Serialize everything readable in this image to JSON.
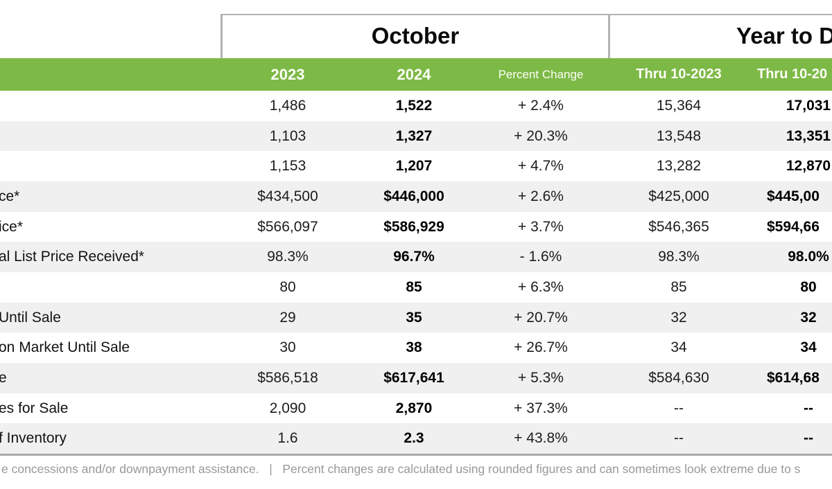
{
  "sections": {
    "october": {
      "title": "October",
      "columns": [
        "2023",
        "2024",
        "Percent Change"
      ]
    },
    "year_to_date": {
      "title": "Year to D",
      "columns": [
        "Thru 10-2023",
        "Thru 10-20"
      ]
    }
  },
  "table": {
    "rows": [
      {
        "label": "",
        "oct_2023": "1,486",
        "oct_2024": "1,522",
        "pct_change": "+ 2.4%",
        "ytd_2023": "15,364",
        "ytd_2024": "17,031"
      },
      {
        "label": "",
        "oct_2023": "1,103",
        "oct_2024": "1,327",
        "pct_change": "+ 20.3%",
        "ytd_2023": "13,548",
        "ytd_2024": "13,351"
      },
      {
        "label": "",
        "oct_2023": "1,153",
        "oct_2024": "1,207",
        "pct_change": "+ 4.7%",
        "ytd_2023": "13,282",
        "ytd_2024": "12,870"
      },
      {
        "label": "ce*",
        "oct_2023": "$434,500",
        "oct_2024": "$446,000",
        "pct_change": "+ 2.6%",
        "ytd_2023": "$425,000",
        "ytd_2024": "$445,00"
      },
      {
        "label": "ice*",
        "oct_2023": "$566,097",
        "oct_2024": "$586,929",
        "pct_change": "+ 3.7%",
        "ytd_2023": "$546,365",
        "ytd_2024": "$594,66"
      },
      {
        "label": "al List Price Received*",
        "oct_2023": "98.3%",
        "oct_2024": "96.7%",
        "pct_change": "- 1.6%",
        "ytd_2023": "98.3%",
        "ytd_2024": "98.0%"
      },
      {
        "label": "",
        "oct_2023": "80",
        "oct_2024": "85",
        "pct_change": "+ 6.3%",
        "ytd_2023": "85",
        "ytd_2024": "80"
      },
      {
        "label": "Until Sale",
        "oct_2023": "29",
        "oct_2024": "35",
        "pct_change": "+ 20.7%",
        "ytd_2023": "32",
        "ytd_2024": "32"
      },
      {
        "label": "on Market Until Sale",
        "oct_2023": "30",
        "oct_2024": "38",
        "pct_change": "+ 26.7%",
        "ytd_2023": "34",
        "ytd_2024": "34"
      },
      {
        "label": "e",
        "oct_2023": "$586,518",
        "oct_2024": "$617,641",
        "pct_change": "+ 5.3%",
        "ytd_2023": "$584,630",
        "ytd_2024": "$614,68"
      },
      {
        "label": "es for Sale",
        "oct_2023": "2,090",
        "oct_2024": "2,870",
        "pct_change": "+ 37.3%",
        "ytd_2023": "--",
        "ytd_2024": "--"
      },
      {
        "label": "f Inventory",
        "oct_2023": "1.6",
        "oct_2024": "2.3",
        "pct_change": "+ 43.8%",
        "ytd_2023": "--",
        "ytd_2024": "--"
      }
    ]
  },
  "footer": {
    "text": "e concessions and/or downpayment assistance.   |   Percent changes are calculated using rounded figures and can sometimes look extreme due to s"
  },
  "colors": {
    "header_green": "#7db946",
    "alt_row_gray": "#f0f0f0",
    "border_gray": "#b3b3b3",
    "footer_text_gray": "#999999"
  }
}
